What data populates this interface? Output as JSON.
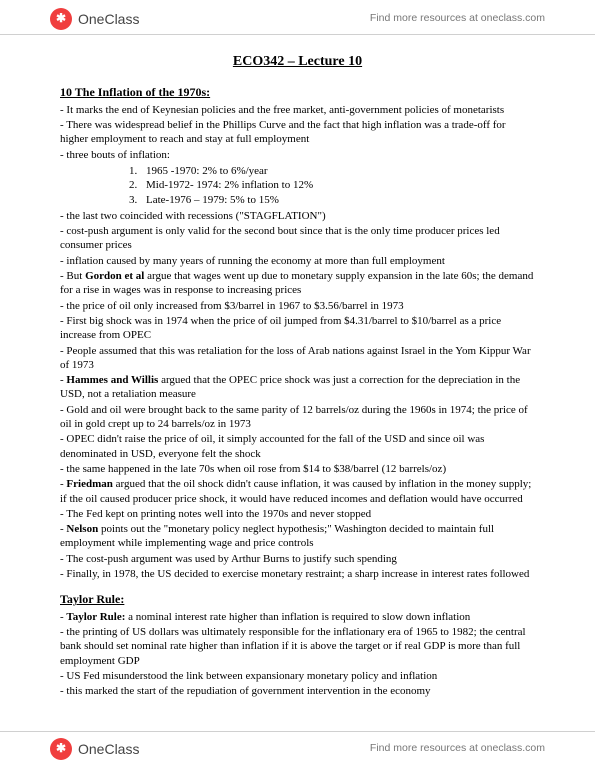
{
  "brand": {
    "name": "OneClass",
    "tagline": "Find more resources at oneclass.com"
  },
  "title": "ECO342 – Lecture 10",
  "sections": [
    {
      "heading": "10 The Inflation of the 1970s:",
      "lines": [
        {
          "t": "- It marks the end of Keynesian policies and the free market, anti-government policies of monetarists"
        },
        {
          "t": "- There was widespread belief in the Phillips Curve and the fact that high inflation was a trade-off for higher employment to reach and stay at full employment"
        },
        {
          "t": "- three bouts of inflation:"
        }
      ],
      "ordered": [
        "1965 -1970: 2% to 6%/year",
        "Mid-1972- 1974: 2% inflation to 12%",
        "Late-1976 – 1979: 5% to 15%"
      ],
      "lines2": [
        {
          "t": "-  the last two coincided with recessions (\"STAGFLATION\")"
        },
        {
          "t": "- cost-push argument is only valid for the second bout since that is the only time producer prices led consumer prices"
        },
        {
          "t": "- inflation caused by many years of running the economy at more than full employment"
        },
        {
          "h": "- But <b>Gordon et al</b> argue that wages went up due to monetary supply expansion in the late 60s; the demand for a rise in wages was in response to increasing prices"
        },
        {
          "t": "- the price of oil only increased from $3/barrel in 1967 to $3.56/barrel in 1973"
        },
        {
          "t": "- First big shock was in 1974 when the price of oil jumped from $4.31/barrel to $10/barrel as a price increase from OPEC"
        },
        {
          "t": "- People assumed that this was retaliation for the loss of Arab nations against Israel in the Yom Kippur War of 1973"
        },
        {
          "h": "- <b>Hammes and Willis</b> argued that the OPEC price shock was just a correction for the depreciation in the USD, not a retaliation measure"
        },
        {
          "t": "- Gold and oil were brought back to the same parity of 12 barrels/oz during the 1960s in 1974; the price of oil in gold crept up to 24 barrels/oz in 1973"
        },
        {
          "t": "- OPEC didn't raise the price of oil, it simply accounted for the fall of the USD and since oil was denominated in USD, everyone felt the shock"
        },
        {
          "t": "- the same happened in the late 70s when oil rose from $14 to $38/barrel (12 barrels/oz)"
        },
        {
          "h": "- <b>Friedman</b> argued that the oil shock didn't cause inflation, it was caused by inflation in the money supply; if the oil caused producer price shock, it would have reduced incomes and deflation would have occurred"
        },
        {
          "t": "- The Fed kept on printing notes well into the 1970s and never stopped"
        },
        {
          "h": "- <b>Nelson</b> points out the \"monetary policy neglect hypothesis;\" Washington decided to maintain full employment while implementing wage and price controls"
        },
        {
          "t": "- The cost-push argument was used by Arthur Burns to justify such spending"
        },
        {
          "t": "- Finally, in 1978, the US decided to exercise monetary restraint; a sharp increase in interest rates followed"
        }
      ]
    },
    {
      "heading": "Taylor Rule:",
      "lines": [
        {
          "h": "- <b>Taylor Rule:</b> a nominal interest rate higher than inflation is required to slow down inflation"
        },
        {
          "t": "- the printing of US dollars was ultimately responsible for the inflationary era of 1965 to 1982; the central bank should set nominal rate higher than inflation if it is above the target or if real GDP is more than full employment GDP"
        },
        {
          "t": "- US Fed misunderstood the link between expansionary monetary policy and inflation"
        },
        {
          "t": "- this marked the start of the repudiation of government intervention in the economy"
        }
      ]
    }
  ]
}
